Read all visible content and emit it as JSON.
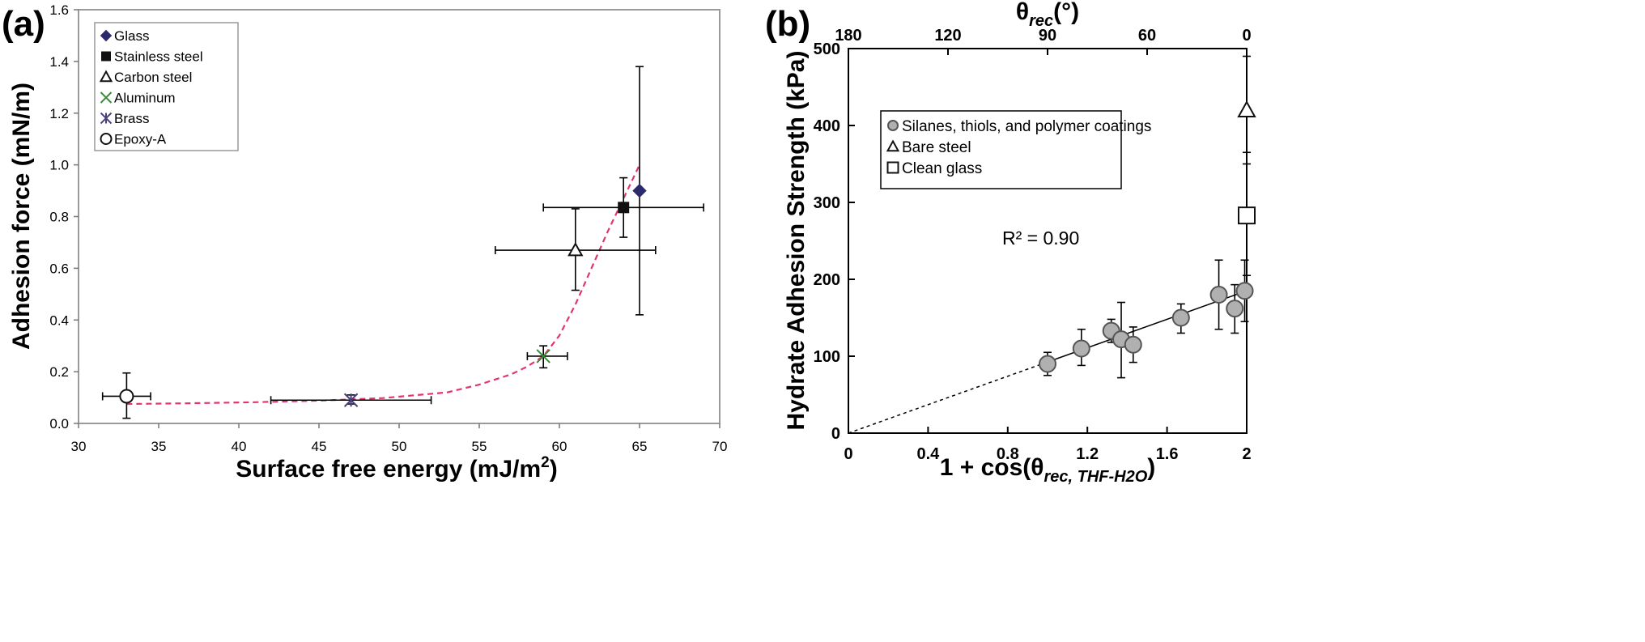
{
  "panel_a": {
    "tag": "(a)",
    "x_axis_title": "Surface free energy (mJ/m",
    "x_axis_unit_exp": "2",
    "x_axis_unit_close": ")",
    "y_axis_title": "Adhesion force (mN/m)"
  },
  "panel_b": {
    "tag": "(b)",
    "top_axis_title_base": "θ",
    "top_axis_title_sub": "rec",
    "top_axis_title_unit": "(°)",
    "x_axis_title_prefix": "1 + cos(θ",
    "x_axis_title_sub": "rec, THF-H2O",
    "x_axis_title_close": ")",
    "y_axis_title": "Hydrate Adhesion Strength (kPa)",
    "annotation": "R² = 0.90"
  },
  "chart_data": [
    {
      "type": "scatter",
      "xlim": [
        30,
        70
      ],
      "ylim": [
        0,
        1.6
      ],
      "x_ticks": [
        "30",
        "35",
        "40",
        "45",
        "50",
        "55",
        "60",
        "65",
        "70"
      ],
      "y_ticks": [
        "0.0",
        "0.2",
        "0.4",
        "0.6",
        "0.8",
        "1.0",
        "1.2",
        "1.4",
        "1.6"
      ],
      "grid": false,
      "legend_position": "top-left",
      "series": [
        {
          "name": "Glass",
          "marker": "filled-diamond",
          "color": "#2b2a6b",
          "x": 65,
          "y": 0.9,
          "yerr_low": 0.42,
          "yerr_high": 1.38
        },
        {
          "name": "Stainless steel",
          "marker": "filled-square",
          "color": "#111111",
          "x": 64,
          "y": 0.835,
          "xerr_low": 59,
          "xerr_high": 69,
          "yerr_low": 0.72,
          "yerr_high": 0.95
        },
        {
          "name": "Carbon steel",
          "marker": "open-triangle",
          "color": "#111111",
          "x": 61,
          "y": 0.67,
          "xerr_low": 56,
          "xerr_high": 66,
          "yerr_low": 0.515,
          "yerr_high": 0.83
        },
        {
          "name": "Aluminum",
          "marker": "x",
          "color": "#3a8a3a",
          "x": 59,
          "y": 0.26,
          "xerr_low": 58,
          "xerr_high": 60.5,
          "yerr_low": 0.215,
          "yerr_high": 0.3
        },
        {
          "name": "Brass",
          "marker": "asterisk",
          "color": "#4a3f7a",
          "x": 47,
          "y": 0.09,
          "xerr_low": 42,
          "xerr_high": 52,
          "yerr_low": 0.075,
          "yerr_high": 0.11
        },
        {
          "name": "Epoxy-A",
          "marker": "open-circle",
          "color": "#111111",
          "x": 33,
          "y": 0.105,
          "xerr_low": 31.5,
          "xerr_high": 34.5,
          "yerr_low": 0.02,
          "yerr_high": 0.195
        }
      ],
      "fit_curve": {
        "color": "#e0366a",
        "style": "dashed",
        "points": [
          [
            33,
            0.075
          ],
          [
            37,
            0.078
          ],
          [
            41,
            0.082
          ],
          [
            45,
            0.088
          ],
          [
            49,
            0.098
          ],
          [
            53,
            0.12
          ],
          [
            55,
            0.15
          ],
          [
            57,
            0.19
          ],
          [
            58,
            0.22
          ],
          [
            59,
            0.26
          ],
          [
            60,
            0.34
          ],
          [
            61,
            0.46
          ],
          [
            62,
            0.6
          ],
          [
            63,
            0.74
          ],
          [
            64,
            0.87
          ],
          [
            65,
            1.0
          ]
        ]
      }
    },
    {
      "type": "scatter",
      "xlim": [
        0,
        2
      ],
      "ylim": [
        0,
        500
      ],
      "x_ticks": [
        "0",
        "0.4",
        "0.8",
        "1.2",
        "1.6",
        "2"
      ],
      "x_tick_values": [
        0,
        0.4,
        0.8,
        1.2,
        1.6,
        2
      ],
      "y_ticks": [
        "0",
        "100",
        "200",
        "300",
        "400",
        "500"
      ],
      "top_ticks": [
        "180",
        "120",
        "90",
        "60",
        "0"
      ],
      "top_tick_angles": [
        180,
        120,
        90,
        60,
        0
      ],
      "grid": false,
      "legend_position": "top-center",
      "series": [
        {
          "name": "Silanes, thiols, and polymer coatings",
          "marker": "filled-circle",
          "color": "#b0b0b0",
          "points": [
            {
              "x": 1.0,
              "y": 90,
              "ylo": 75,
              "yhi": 105
            },
            {
              "x": 1.17,
              "y": 110,
              "ylo": 88,
              "yhi": 135
            },
            {
              "x": 1.32,
              "y": 133,
              "ylo": 118,
              "yhi": 148
            },
            {
              "x": 1.37,
              "y": 122,
              "ylo": 72,
              "yhi": 170
            },
            {
              "x": 1.43,
              "y": 115,
              "ylo": 92,
              "yhi": 138
            },
            {
              "x": 1.67,
              "y": 150,
              "ylo": 130,
              "yhi": 168
            },
            {
              "x": 1.86,
              "y": 180,
              "ylo": 135,
              "yhi": 225
            },
            {
              "x": 1.94,
              "y": 162,
              "ylo": 130,
              "yhi": 193
            },
            {
              "x": 1.99,
              "y": 185,
              "ylo": 145,
              "yhi": 225
            }
          ]
        },
        {
          "name": "Bare steel",
          "marker": "open-triangle",
          "color": "#111111",
          "points": [
            {
              "x": 2.0,
              "y": 420,
              "ylo": 350,
              "yhi": 490
            }
          ]
        },
        {
          "name": "Clean glass",
          "marker": "open-square",
          "color": "#111111",
          "points": [
            {
              "x": 2.0,
              "y": 283,
              "ylo": 205,
              "yhi": 365
            }
          ]
        }
      ],
      "fit_line": {
        "x": [
          0,
          2
        ],
        "y": [
          0,
          185
        ],
        "dashed_below_x": 1.0
      }
    }
  ]
}
